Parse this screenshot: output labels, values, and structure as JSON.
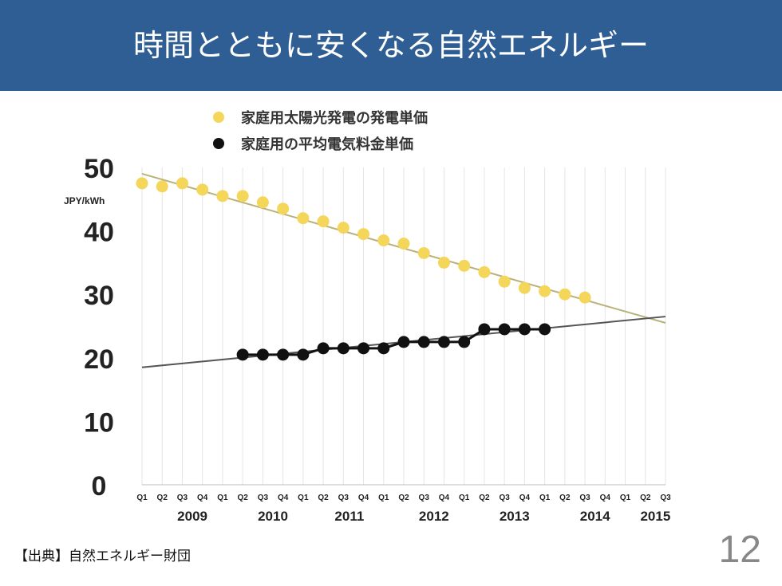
{
  "slide": {
    "title": "時間とともに安くなる自然エネルギー",
    "source": "【出典】自然エネルギー財団",
    "page_number": "12"
  },
  "colors": {
    "header_bg": "#2f5e95",
    "solar": "#f4d65a",
    "grid_price": "#111111",
    "solar_trend": "#b9b27a",
    "grid_trend": "#555555"
  },
  "chart_data": {
    "type": "scatter",
    "title": "",
    "xlabel": "",
    "ylabel": "JPY/kWh",
    "ylim": [
      0,
      50
    ],
    "yticks": [
      "0",
      "10",
      "20",
      "30",
      "40",
      "50"
    ],
    "grid": true,
    "legend_position": "top-left",
    "x": [
      "2009 Q1",
      "2009 Q2",
      "2009 Q3",
      "2009 Q4",
      "2010 Q1",
      "2010 Q2",
      "2010 Q3",
      "2010 Q4",
      "2011 Q1",
      "2011 Q2",
      "2011 Q3",
      "2011 Q4",
      "2012 Q1",
      "2012 Q2",
      "2012 Q3",
      "2012 Q4",
      "2013 Q1",
      "2013 Q2",
      "2013 Q3",
      "2013 Q4",
      "2014 Q1",
      "2014 Q2",
      "2014 Q3",
      "2014 Q4",
      "2015 Q1",
      "2015 Q2",
      "2015 Q3"
    ],
    "quarter_labels": [
      "Q1",
      "Q2",
      "Q3",
      "Q4",
      "Q1",
      "Q2",
      "Q3",
      "Q4",
      "Q1",
      "Q2",
      "Q3",
      "Q4",
      "Q1",
      "Q2",
      "Q3",
      "Q4",
      "Q1",
      "Q2",
      "Q3",
      "Q4",
      "Q1",
      "Q2",
      "Q3",
      "Q4",
      "Q1",
      "Q2",
      "Q3"
    ],
    "year_labels": [
      {
        "label": "2009",
        "quarter_index": 2.5
      },
      {
        "label": "2010",
        "quarter_index": 6.5
      },
      {
        "label": "2011",
        "quarter_index": 10.3
      },
      {
        "label": "2012",
        "quarter_index": 14.5
      },
      {
        "label": "2013",
        "quarter_index": 18.5
      },
      {
        "label": "2014",
        "quarter_index": 22.5
      },
      {
        "label": "2015",
        "quarter_index": 25.5
      }
    ],
    "series": [
      {
        "name": "家庭用太陽光発電の発電単価",
        "marker": "circle",
        "values": [
          47.5,
          47,
          47.5,
          46.5,
          45.5,
          45.5,
          44.5,
          43.5,
          42,
          41.5,
          40.5,
          39.5,
          38.5,
          38,
          36.5,
          35,
          34.5,
          33.5,
          32,
          31,
          30.5,
          30,
          29.5,
          null,
          null,
          null,
          null
        ],
        "trend": {
          "from": [
            0,
            49
          ],
          "to": [
            26,
            25.5
          ]
        }
      },
      {
        "name": "家庭用の平均電気料金単価",
        "marker": "circle",
        "values": [
          null,
          null,
          null,
          null,
          null,
          20.5,
          20.5,
          20.5,
          20.5,
          21.5,
          21.5,
          21.5,
          21.5,
          22.5,
          22.5,
          22.5,
          22.5,
          24.5,
          24.5,
          24.5,
          24.5,
          null,
          null,
          null,
          null,
          null,
          null
        ],
        "trend": {
          "from": [
            0,
            18.5
          ],
          "to": [
            26,
            26.5
          ]
        }
      }
    ]
  }
}
